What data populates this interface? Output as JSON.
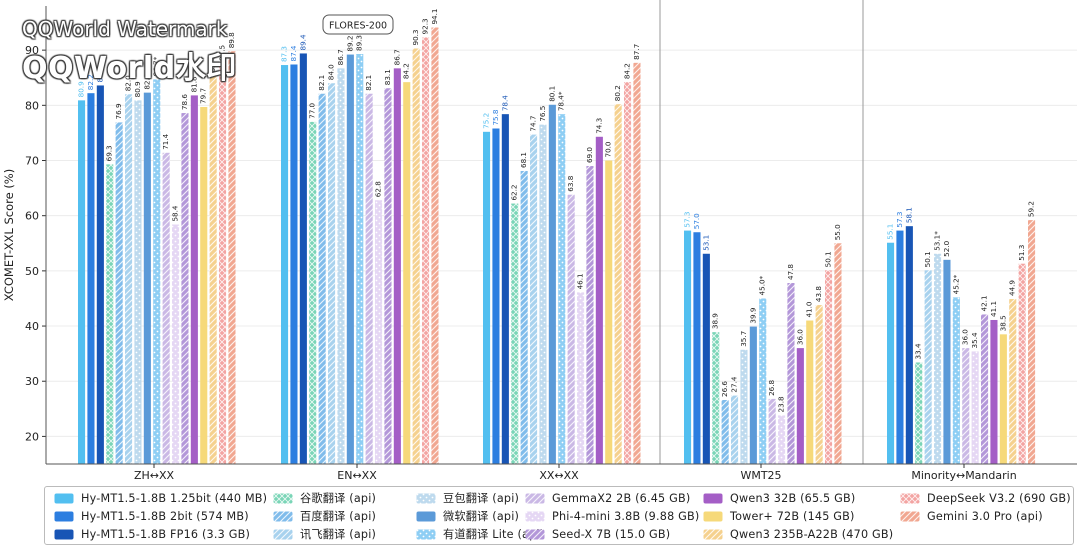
{
  "badge": "FLORES-200",
  "watermark": {
    "line1": "QQWorld Watermark",
    "line2": "QQWorld水印"
  },
  "colors": {
    "c0": "#52bff0",
    "c1": "#2c7ee0",
    "c2": "#1855b5",
    "c3": "#4ec79f",
    "c4": "#56a6e4",
    "c5": "#8bc3e8",
    "c6": "#a8cde8",
    "c7": "#5b9ad8",
    "c8": "#68bdf0",
    "c9": "#b8a0dc",
    "c10": "#dccaf0",
    "c11": "#9a74cc",
    "c12": "#a45ec6",
    "c13": "#f6d97a",
    "c14": "#f2c268",
    "c15": "#ef8583",
    "c16": "#ec8a6c"
  },
  "chart_data": {
    "type": "bar",
    "ylabel": "XCOMET-XXL Score (%)",
    "ylim": [
      15,
      98
    ],
    "yticks": [
      20,
      30,
      40,
      50,
      60,
      70,
      80,
      90
    ],
    "grid": true,
    "categories": [
      "ZH↔XX",
      "EN↔XX",
      "XX↔XX",
      "WMT25",
      "Minority↔Mandarin"
    ],
    "series": [
      {
        "name": "Hy-MT1.5-1.8B 1.25bit (440 MB)",
        "pattern": "solid",
        "values": [
          80.9,
          87.3,
          75.2,
          57.3,
          55.1
        ]
      },
      {
        "name": "Hy-MT1.5-1.8B 2bit (574 MB)",
        "pattern": "solid",
        "values": [
          82.2,
          87.4,
          75.8,
          57.0,
          57.3
        ]
      },
      {
        "name": "Hy-MT1.5-1.8B FP16 (3.3 GB)",
        "pattern": "solid",
        "values": [
          83.6,
          89.4,
          78.4,
          53.1,
          58.1
        ]
      },
      {
        "name": "谷歌翻译 (api)",
        "pattern": "cross",
        "values": [
          69.3,
          77.0,
          62.2,
          38.9,
          33.4
        ]
      },
      {
        "name": "百度翻译 (api)",
        "pattern": "diag",
        "values": [
          76.9,
          82.1,
          68.1,
          26.6,
          null
        ]
      },
      {
        "name": "讯飞翻译 (api)",
        "pattern": "diag",
        "values": [
          82.0,
          84.0,
          74.7,
          27.4,
          50.1
        ]
      },
      {
        "name": "豆包翻译 (api)",
        "pattern": "dots",
        "values": [
          80.9,
          86.7,
          76.5,
          35.7,
          53.1
        ]
      },
      {
        "name": "微软翻译 (api)",
        "pattern": "solid",
        "values": [
          82.3,
          89.2,
          80.1,
          39.9,
          52.0
        ]
      },
      {
        "name": "有道翻译 Lite (api)",
        "pattern": "dots",
        "values": [
          84.7,
          89.3,
          78.4,
          45.0,
          45.2
        ]
      },
      {
        "name": "GemmaX2 2B (6.45 GB)",
        "pattern": "diag",
        "values": [
          71.4,
          82.1,
          63.8,
          26.8,
          36.0
        ]
      },
      {
        "name": "Phi-4-mini 3.8B (9.88 GB)",
        "pattern": "dots",
        "values": [
          58.4,
          62.8,
          46.1,
          23.8,
          35.4
        ]
      },
      {
        "name": "Seed-X 7B (15.0 GB)",
        "pattern": "diag",
        "values": [
          78.6,
          83.1,
          69.0,
          47.8,
          42.1
        ]
      },
      {
        "name": "Qwen3 32B (65.5 GB)",
        "pattern": "solid",
        "values": [
          81.8,
          86.7,
          74.3,
          36.0,
          41.1
        ]
      },
      {
        "name": "Tower+ 72B (145 GB)",
        "pattern": "solid",
        "values": [
          79.7,
          84.2,
          70.0,
          41.0,
          38.5
        ]
      },
      {
        "name": "Qwen3 235B-A22B (470 GB)",
        "pattern": "diag",
        "values": [
          85.4,
          90.3,
          80.2,
          43.8,
          44.9
        ]
      },
      {
        "name": "DeepSeek V3.2 (690 GB)",
        "pattern": "cross",
        "values": [
          87.5,
          92.3,
          84.2,
          50.1,
          51.3
        ]
      },
      {
        "name": "Gemini 3.0 Pro (api)",
        "pattern": "diag",
        "values": [
          89.8,
          94.1,
          87.7,
          55.0,
          59.2
        ]
      }
    ],
    "value_labels": [
      [
        "80.9",
        "87.3",
        "75.2",
        "57.3",
        "55.1"
      ],
      [
        "82.2",
        "87.4",
        "75.8",
        "57.0",
        "57.3"
      ],
      [
        "83.6",
        "89.4",
        "78.4",
        "53.1",
        "58.1"
      ],
      [
        "69.3",
        "77.0",
        "62.2",
        "38.9",
        "33.4"
      ],
      [
        "76.9",
        "82.1",
        "68.1",
        "26.6",
        ""
      ],
      [
        "82.0",
        "84.0",
        "74.7",
        "27.4",
        "50.1"
      ],
      [
        "80.9",
        "86.7",
        "76.5",
        "35.7",
        "53.1*"
      ],
      [
        "82.3",
        "89.2",
        "80.1",
        "39.9",
        "52.0"
      ],
      [
        "84.7*",
        "89.3*",
        "78.4*",
        "45.0*",
        "45.2*"
      ],
      [
        "71.4",
        "82.1",
        "63.8",
        "26.8",
        "36.0"
      ],
      [
        "58.4",
        "62.8",
        "46.1",
        "23.8",
        "35.4"
      ],
      [
        "78.6",
        "83.1",
        "69.0",
        "47.8",
        "42.1"
      ],
      [
        "81.8",
        "86.7",
        "74.3",
        "36.0",
        "41.1"
      ],
      [
        "79.7",
        "84.2",
        "70.0",
        "41.0",
        "38.5"
      ],
      [
        "85.4",
        "90.3",
        "80.2",
        "43.8",
        "44.9"
      ],
      [
        "87.5",
        "92.3",
        "84.2",
        "50.1",
        "51.3"
      ],
      [
        "89.8",
        "94.1",
        "87.7",
        "55.0",
        "59.2"
      ]
    ],
    "legend_placement": "bottom"
  }
}
